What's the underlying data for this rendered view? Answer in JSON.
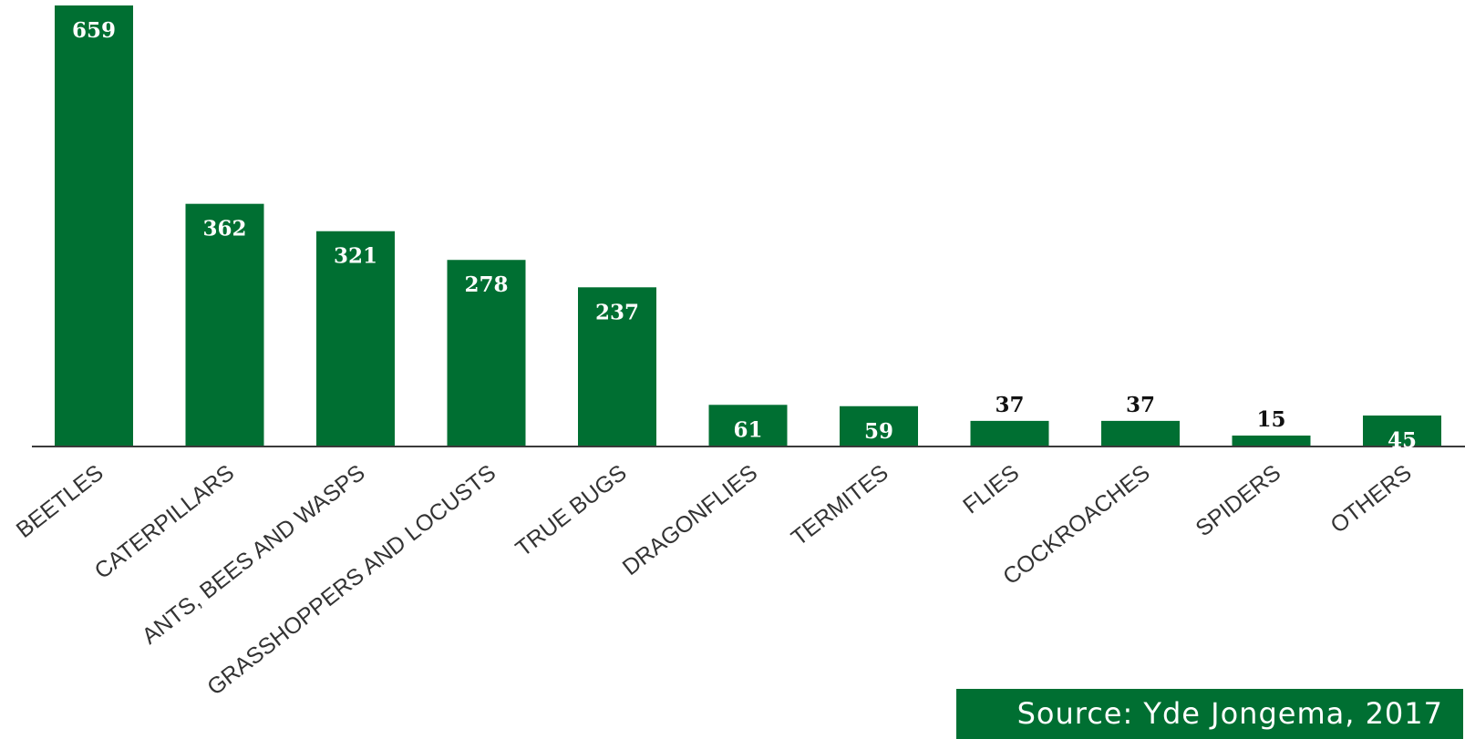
{
  "chart_data": {
    "type": "bar",
    "categories": [
      "BEETLES",
      "CATERPILLARS",
      "ANTS, BEES AND WASPS",
      "GRASSHOPPERS AND LOCUSTS",
      "TRUE BUGS",
      "DRAGONFLIES",
      "TERMITES",
      "FLIES",
      "COCKROACHES",
      "SPIDERS",
      "OTHERS"
    ],
    "values": [
      659,
      362,
      321,
      278,
      237,
      61,
      59,
      37,
      37,
      15,
      45
    ],
    "title": "",
    "xlabel": "",
    "ylabel": "",
    "ylim": [
      0,
      659
    ],
    "grid": false,
    "legend": "none",
    "bar_color": "#006f32"
  },
  "source": {
    "text": "Source: Yde Jongema, 2017",
    "background": "#006f32"
  }
}
